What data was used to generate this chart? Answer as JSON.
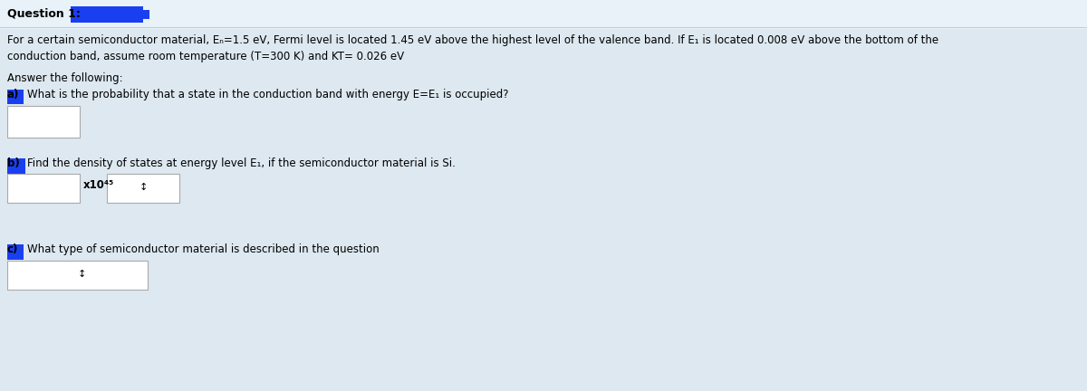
{
  "background_color": "#dde8f0",
  "highlight_color": "#1a3ff0",
  "text_color": "#000000",
  "blue_color": "#1a3ff0",
  "box_facecolor": "#ffffff",
  "box_edgecolor": "#aaaaaa",
  "title": "Question 1:",
  "body_line1": "For a certain semiconductor material, Eₙ=1.5 eV, Fermi level is located 1.45 eV above the highest level of the valence band. If E₁ is located 0.008 eV above the bottom of the",
  "body_line2": "conduction band, assume room temperature (T=300 K) and KT= 0.026 eV",
  "answer_label": "Answer the following:",
  "part_a_label": "a)",
  "part_a_text": "What is the probability that a state in the conduction band with energy E=E₁ is occupied?",
  "part_b_label": "b)",
  "part_b_text": "Find the density of states at energy level E₁, if the semiconductor material is Si.",
  "part_b_unit": "x10⁴⁵",
  "part_c_label": "c)",
  "part_c_text": "What type of semiconductor material is described in the question",
  "arrow": "↕",
  "fig_width": 12.0,
  "fig_height": 4.32,
  "dpi": 100
}
